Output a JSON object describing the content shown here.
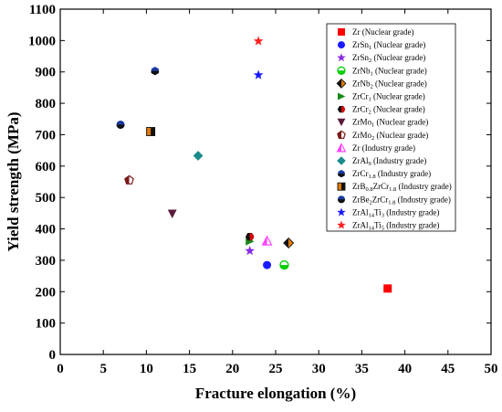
{
  "chart_data": {
    "type": "scatter",
    "title": "",
    "xlabel": "Fracture elongation (%)",
    "ylabel": "Yield strength (MPa)",
    "xlim": [
      0,
      50
    ],
    "ylim": [
      0,
      1100
    ],
    "xticks": [
      "0",
      "5",
      "10",
      "15",
      "20",
      "25",
      "30",
      "35",
      "40",
      "45",
      "50"
    ],
    "yticks": [
      "0",
      "100",
      "200",
      "300",
      "400",
      "500",
      "600",
      "700",
      "800",
      "900",
      "1000",
      "1100"
    ],
    "legend_position": "top-right",
    "series": [
      {
        "label": "Zr",
        "sub": "",
        "suffix": " (Nuclear grade)",
        "marker": "square",
        "color": "#ff0000",
        "points": [
          [
            38,
            210
          ]
        ]
      },
      {
        "label": "ZrSn",
        "sub": "1",
        "suffix": " (Nuclear grade)",
        "marker": "circle",
        "color": "#1a1aff",
        "points": [
          [
            24,
            285
          ]
        ]
      },
      {
        "label": "ZrSn",
        "sub": "2",
        "suffix": " (Nuclear grade)",
        "marker": "star",
        "color": "#8a2be2",
        "points": [
          [
            22,
            330
          ]
        ]
      },
      {
        "label": "ZrNb",
        "sub": "1",
        "suffix": " (Nuclear grade)",
        "marker": "circle-half-green",
        "color": "#00cc00",
        "points": [
          [
            26,
            285
          ]
        ]
      },
      {
        "label": "ZrNb",
        "sub": "2",
        "suffix": " (Nuclear grade)",
        "marker": "diamond-half",
        "color": "#e07b00",
        "points": [
          [
            26.5,
            355
          ]
        ]
      },
      {
        "label": "ZrCr",
        "sub": "1",
        "suffix": " (Nuclear grade)",
        "marker": "triangle-right",
        "color": "#1a8a1a",
        "points": [
          [
            22,
            360
          ]
        ]
      },
      {
        "label": "ZrCr",
        "sub": "2",
        "suffix": " (Nuclear grade)",
        "marker": "hexagon-half",
        "color": "#e00000",
        "points": [
          [
            22,
            375
          ]
        ]
      },
      {
        "label": "ZrMo",
        "sub": "1",
        "suffix": " (Nuclear grade)",
        "marker": "triangle-down",
        "color": "#5a1a3a",
        "points": [
          [
            13,
            448
          ]
        ]
      },
      {
        "label": "ZrMo",
        "sub": "2",
        "suffix": " (Nuclear grade)",
        "marker": "pentagon-half",
        "color": "#7a1a1a",
        "points": [
          [
            8,
            555
          ]
        ]
      },
      {
        "label": "Zr",
        "sub": "",
        "suffix": " (Industry grade)",
        "marker": "triangle-up-half",
        "color": "#ff44ff",
        "points": [
          [
            24,
            362
          ]
        ]
      },
      {
        "label": "ZrAl",
        "sub": "9",
        "suffix": " (Industry grade)",
        "marker": "diamond",
        "color": "#1a8a8a",
        "points": [
          [
            16,
            633
          ]
        ]
      },
      {
        "label": "ZrCr",
        "sub": "1.8",
        "suffix": " (Industry grade)",
        "marker": "hexagon-half-blue",
        "color": "#1a3aa0",
        "points": [
          [
            11,
            903
          ]
        ]
      },
      {
        "label": "ZrB",
        "sub": "0.8",
        "label2": "ZrCr",
        "sub2": "1.8",
        "suffix": " (Industry grade)",
        "marker": "square-half",
        "color": "#e07b00",
        "points": [
          [
            10.5,
            710
          ]
        ]
      },
      {
        "label": "ZrBe",
        "sub": "2",
        "label2": "ZrCr",
        "sub2": "1.8",
        "suffix": " (Industry grade)",
        "marker": "circle-half-blue",
        "color": "#1a3aa0",
        "points": [
          [
            7,
            732
          ]
        ]
      },
      {
        "label": "ZrAl",
        "sub": "14",
        "label2": "Ti",
        "sub2": "3",
        "suffix": " (Industry grade)",
        "marker": "star",
        "color": "#1a1aff",
        "points": [
          [
            23,
            890
          ]
        ]
      },
      {
        "label": "ZrAl",
        "sub": "14",
        "label2": "Ti",
        "sub2": "5",
        "suffix": " (Industry grade)",
        "marker": "star",
        "color": "#ff2020",
        "points": [
          [
            23,
            998
          ]
        ]
      }
    ]
  }
}
